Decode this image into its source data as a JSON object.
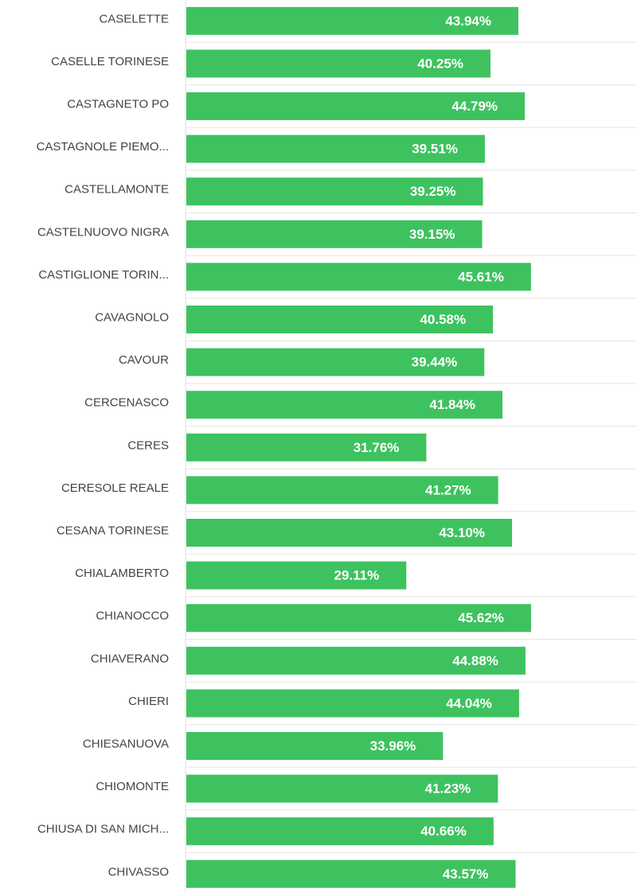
{
  "chart_data": {
    "type": "bar",
    "orientation": "horizontal",
    "categories": [
      "CASELETTE",
      "CASELLE TORINESE",
      "CASTAGNETO PO",
      "CASTAGNOLE PIEMO...",
      "CASTELLAMONTE",
      "CASTELNUOVO NIGRA",
      "CASTIGLIONE TORIN...",
      "CAVAGNOLO",
      "CAVOUR",
      "CERCENASCO",
      "CERES",
      "CERESOLE REALE",
      "CESANA TORINESE",
      "CHIALAMBERTO",
      "CHIANOCCO",
      "CHIAVERANO",
      "CHIERI",
      "CHIESANUOVA",
      "CHIOMONTE",
      "CHIUSA DI SAN MICH...",
      "CHIVASSO"
    ],
    "values": [
      43.94,
      40.25,
      44.79,
      39.51,
      39.25,
      39.15,
      45.61,
      40.58,
      39.44,
      41.84,
      31.76,
      41.27,
      43.1,
      29.11,
      45.62,
      44.88,
      44.04,
      33.96,
      41.23,
      40.66,
      43.57
    ],
    "value_labels": [
      "43.94%",
      "40.25%",
      "44.79%",
      "39.51%",
      "39.25%",
      "39.15%",
      "45.61%",
      "40.58%",
      "39.44%",
      "41.84%",
      "31.76%",
      "41.27%",
      "43.10%",
      "29.11%",
      "45.62%",
      "44.88%",
      "44.04%",
      "33.96%",
      "41.23%",
      "40.66%",
      "43.57%"
    ],
    "title": "",
    "xlabel": "",
    "ylabel": "",
    "xlim": [
      0,
      56.5
    ],
    "grid": "horizontal row separators",
    "legend": "none",
    "bar_color": "#3ec25f",
    "separator_color": "#e5e5e5",
    "axis_color": "#dddddd",
    "category_label_color": "#444444",
    "value_label_color": "#ffffff"
  }
}
